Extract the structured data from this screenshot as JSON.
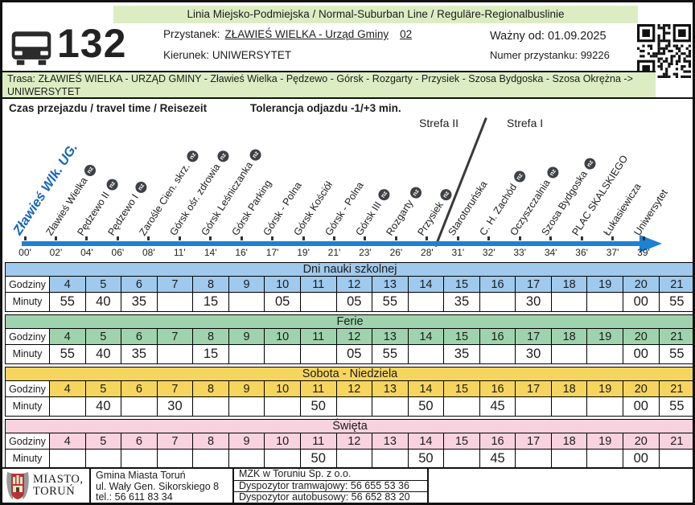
{
  "header": {
    "top_band": "Linia Miejsko-Podmiejska / Normal-Suburban Line / Reguläre-Regionalbuslinie",
    "line_number": "132",
    "stop_label": "Przystanek:",
    "stop_value": "ZŁAWIEŚ WIELKA - Urząd Gminy",
    "stop_code": "02",
    "direction_label": "Kierunek:",
    "direction_value": "UNIWERSYTET",
    "valid_from": "Ważny od: 01.09.2025",
    "stop_number": "Numer przystanku: 99226"
  },
  "route": {
    "label": "Trasa:",
    "text": "ZŁAWIEŚ WIELKA - URZĄD GMINY - Zławieś Wielka - Pędzewo - Górsk - Rozgarty - Przysiek - Szosa Bydgoska - Szosa Okrężna -> UNIWERSYTET"
  },
  "info_row": {
    "travel_time": "Czas przejazdu / travel time / Reisezeit",
    "tolerance": "Tolerancja odjazdu -1/+3 min."
  },
  "route_diagram": {
    "zone_labels": [
      "Strefa II",
      "Strefa I"
    ],
    "nz_badge": "nz",
    "stops": [
      {
        "name": "Zławieś Wlk. UG.",
        "minute": "00'",
        "nz": false,
        "highlight": true
      },
      {
        "name": "Zławieś Wielka",
        "minute": "02'",
        "nz": true,
        "highlight": false
      },
      {
        "name": "Pędzewo II",
        "minute": "04'",
        "nz": true,
        "highlight": false
      },
      {
        "name": "Pędzewo I",
        "minute": "06'",
        "nz": true,
        "highlight": false
      },
      {
        "name": "Zarośle Cien. skrz.",
        "minute": "08'",
        "nz": true,
        "highlight": false
      },
      {
        "name": "Górsk ośr. zdrowia",
        "minute": "11'",
        "nz": true,
        "highlight": false
      },
      {
        "name": "Górsk Leśniczanka",
        "minute": "14'",
        "nz": true,
        "highlight": false
      },
      {
        "name": "Górsk Parking",
        "minute": "16'",
        "nz": false,
        "highlight": false
      },
      {
        "name": "Górsk - Polna",
        "minute": "17'",
        "nz": false,
        "highlight": false
      },
      {
        "name": "Górsk Kościół",
        "minute": "19'",
        "nz": false,
        "highlight": false
      },
      {
        "name": "Górsk - Polna",
        "minute": "21'",
        "nz": false,
        "highlight": false
      },
      {
        "name": "Górsk III",
        "minute": "23'",
        "nz": true,
        "highlight": false
      },
      {
        "name": "Rozgarty",
        "minute": "26'",
        "nz": true,
        "highlight": false
      },
      {
        "name": "Przysiek",
        "minute": "28'",
        "nz": true,
        "highlight": false
      },
      {
        "name": "Starotoruńska",
        "minute": "31'",
        "nz": false,
        "highlight": false
      },
      {
        "name": "C. H. Zachód",
        "minute": "32'",
        "nz": true,
        "highlight": false
      },
      {
        "name": "Oczyszczalnia",
        "minute": "33'",
        "nz": true,
        "highlight": false
      },
      {
        "name": "Szosa Bydgoska",
        "minute": "34'",
        "nz": true,
        "highlight": false
      },
      {
        "name": "PLAC SKALSKIEGO",
        "minute": "36'",
        "nz": false,
        "highlight": false
      },
      {
        "name": "Łukasiewicza",
        "minute": "37'",
        "nz": false,
        "highlight": false
      },
      {
        "name": "Uniwersytet",
        "minute": "39'",
        "nz": false,
        "highlight": false
      }
    ]
  },
  "timetable": {
    "row_labels": {
      "hours": "Godziny",
      "minutes": "Minuty"
    },
    "hours": [
      "4",
      "5",
      "6",
      "7",
      "8",
      "9",
      "10",
      "11",
      "12",
      "13",
      "14",
      "15",
      "16",
      "17",
      "18",
      "19",
      "20",
      "21"
    ],
    "sections": [
      {
        "title": "Dni nauki szkolnej",
        "color": "#9fc9ed",
        "minutes": [
          "55",
          "40",
          "35",
          "",
          "15",
          "",
          "05",
          "",
          "05",
          "55",
          "",
          "35",
          "",
          "30",
          "",
          "",
          "00",
          "55"
        ]
      },
      {
        "title": "Ferie",
        "color": "#9fd3ad",
        "minutes": [
          "55",
          "40",
          "35",
          "",
          "15",
          "",
          "",
          "",
          "05",
          "55",
          "",
          "35",
          "",
          "30",
          "",
          "",
          "00",
          "55"
        ]
      },
      {
        "title": "Sobota - Niedziela",
        "color": "#f6d55f",
        "minutes": [
          "",
          "40",
          "",
          "30",
          "",
          "",
          "",
          "50",
          "",
          "",
          "50",
          "",
          "45",
          "",
          "",
          "",
          "00",
          "55"
        ]
      },
      {
        "title": "Święta",
        "color": "#f8d3df",
        "minutes": [
          "",
          "",
          "",
          "",
          "",
          "",
          "",
          "50",
          "",
          "",
          "50",
          "",
          "45",
          "",
          "",
          "",
          "00",
          ""
        ]
      }
    ]
  },
  "footer": {
    "city": {
      "line1": "MIASTO,",
      "line2": "TORUŃ"
    },
    "gmina": [
      "Gmina Miasta Toruń",
      "ul. Wały Gen. Sikorskiego 8",
      "tel.: 56 611 83 34"
    ],
    "mzk": [
      "MZK w Toruniu Sp. z o.o.",
      "Dyspozytor tramwajowy: 56 655 53 36",
      "Dyspozytor autobusowy: 56 652 83 20"
    ]
  },
  "colors": {
    "band_green": "#dcedc3",
    "timeline_blue": "#1e82d2",
    "highlight_stop_blue": "#1566b8"
  }
}
